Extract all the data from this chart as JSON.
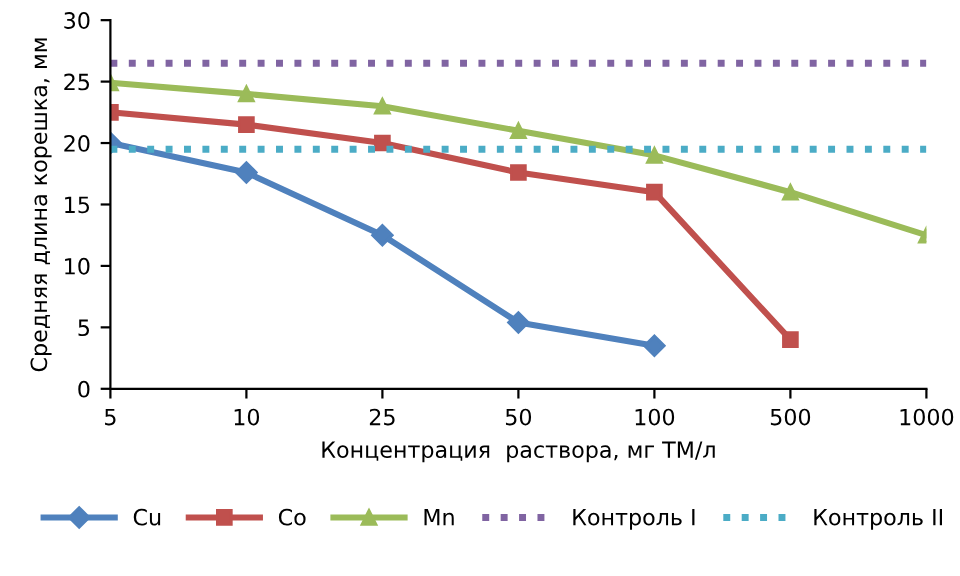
{
  "chart_data": {
    "type": "line",
    "xlabel": "Концентрация  раствора, мг ТМ/л",
    "ylabel": "Средняя длина корешка, мм",
    "categories": [
      "5",
      "10",
      "25",
      "50",
      "100",
      "500",
      "1000"
    ],
    "series": [
      {
        "name": "Cu",
        "color": "#4f81bd",
        "marker": "diamond",
        "line_style": "solid",
        "values": [
          20,
          17.6,
          12.5,
          5.4,
          3.5,
          null,
          null
        ]
      },
      {
        "name": "Co",
        "color": "#c0504d",
        "marker": "square",
        "line_style": "solid",
        "values": [
          22.5,
          21.5,
          20,
          17.6,
          16,
          4,
          null
        ]
      },
      {
        "name": "Mn",
        "color": "#9bbb59",
        "marker": "triangle",
        "line_style": "solid",
        "values": [
          24.9,
          24,
          23,
          21,
          19,
          16,
          12.5
        ]
      },
      {
        "name": "Контроль I",
        "color": "#8064a2",
        "marker": "none",
        "line_style": "dotted",
        "values": [
          26.5,
          26.5,
          26.5,
          26.5,
          26.5,
          26.5,
          26.5
        ]
      },
      {
        "name": "Контроль II",
        "color": "#4bacc6",
        "marker": "none",
        "line_style": "dotted",
        "values": [
          19.5,
          19.5,
          19.5,
          19.5,
          19.5,
          19.5,
          19.5
        ]
      }
    ],
    "ylim": [
      0,
      30
    ],
    "yticks": [
      0,
      5,
      10,
      15,
      20,
      25,
      30
    ],
    "grid": false,
    "legend": "bottom"
  }
}
